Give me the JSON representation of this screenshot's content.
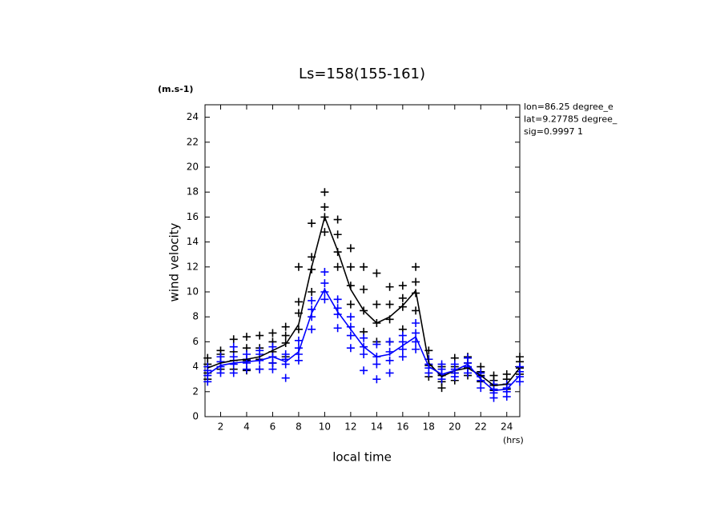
{
  "chart_data": {
    "type": "line",
    "title": "Ls=158(155-161)",
    "y_unit": "(m.s-1)",
    "ylabel": "wind velocity",
    "xlabel": "local time",
    "x_unit": "(hrs)",
    "annotations": [
      "lon=86.25 degree_e",
      "lat=9.27785 degree_",
      "sig=0.9997 1"
    ],
    "x": [
      1,
      2,
      3,
      4,
      5,
      6,
      7,
      8,
      9,
      10,
      11,
      12,
      13,
      14,
      15,
      16,
      17,
      18,
      19,
      20,
      21,
      22,
      23,
      24,
      25
    ],
    "series": [
      {
        "color": "#000000",
        "values": [
          3.9,
          4.3,
          4.5,
          4.6,
          4.8,
          5.3,
          5.8,
          7.4,
          12.0,
          16.0,
          13.3,
          10.2,
          8.5,
          7.5,
          8.0,
          8.9,
          10.1,
          4.3,
          3.2,
          3.7,
          3.9,
          3.3,
          2.5,
          2.6,
          3.9
        ]
      },
      {
        "color": "#0000ff",
        "values": [
          3.4,
          4.1,
          4.3,
          4.4,
          4.5,
          4.8,
          4.4,
          5.2,
          8.3,
          10.2,
          8.4,
          7.0,
          5.6,
          4.8,
          5.0,
          5.7,
          6.4,
          4.0,
          3.4,
          3.7,
          4.2,
          3.0,
          2.1,
          2.2,
          3.3
        ]
      }
    ],
    "scatter": [
      {
        "color": "#000000",
        "points": [
          [
            1,
            3.0
          ],
          [
            1,
            3.5
          ],
          [
            1,
            4.2
          ],
          [
            1,
            4.7
          ],
          [
            2,
            3.8
          ],
          [
            2,
            4.4
          ],
          [
            2,
            5.0
          ],
          [
            2,
            5.3
          ],
          [
            3,
            3.8
          ],
          [
            3,
            4.5
          ],
          [
            3,
            5.2
          ],
          [
            3,
            6.2
          ],
          [
            4,
            3.7
          ],
          [
            4,
            4.5
          ],
          [
            4,
            5.5
          ],
          [
            4,
            6.4
          ],
          [
            5,
            3.8
          ],
          [
            5,
            4.6
          ],
          [
            5,
            5.5
          ],
          [
            5,
            6.5
          ],
          [
            6,
            4.3
          ],
          [
            6,
            5.2
          ],
          [
            6,
            6.0
          ],
          [
            6,
            6.7
          ],
          [
            7,
            4.8
          ],
          [
            7,
            5.9
          ],
          [
            7,
            6.5
          ],
          [
            7,
            7.2
          ],
          [
            8,
            7.0
          ],
          [
            8,
            8.3
          ],
          [
            8,
            9.2
          ],
          [
            8,
            12.0
          ],
          [
            9,
            10.0
          ],
          [
            9,
            11.8
          ],
          [
            9,
            12.8
          ],
          [
            9,
            15.5
          ],
          [
            10,
            14.8
          ],
          [
            10,
            16.0
          ],
          [
            10,
            16.8
          ],
          [
            10,
            18.0
          ],
          [
            11,
            12.0
          ],
          [
            11,
            13.2
          ],
          [
            11,
            14.6
          ],
          [
            11,
            15.8
          ],
          [
            12,
            9.0
          ],
          [
            12,
            10.5
          ],
          [
            12,
            12.0
          ],
          [
            12,
            13.5
          ],
          [
            13,
            6.8
          ],
          [
            13,
            8.5
          ],
          [
            13,
            10.2
          ],
          [
            13,
            12.0
          ],
          [
            14,
            6.0
          ],
          [
            14,
            7.5
          ],
          [
            14,
            9.0
          ],
          [
            14,
            11.5
          ],
          [
            15,
            6.0
          ],
          [
            15,
            7.8
          ],
          [
            15,
            9.0
          ],
          [
            15,
            10.4
          ],
          [
            16,
            7.0
          ],
          [
            16,
            8.8
          ],
          [
            16,
            9.5
          ],
          [
            16,
            10.5
          ],
          [
            17,
            8.5
          ],
          [
            17,
            9.9
          ],
          [
            17,
            10.8
          ],
          [
            17,
            12.0
          ],
          [
            18,
            3.2
          ],
          [
            18,
            4.1
          ],
          [
            18,
            4.6
          ],
          [
            18,
            5.3
          ],
          [
            19,
            2.3
          ],
          [
            19,
            2.8
          ],
          [
            19,
            3.3
          ],
          [
            19,
            4.0
          ],
          [
            20,
            2.9
          ],
          [
            20,
            3.5
          ],
          [
            20,
            4.0
          ],
          [
            20,
            4.7
          ],
          [
            21,
            3.3
          ],
          [
            21,
            3.9
          ],
          [
            21,
            4.3
          ],
          [
            21,
            4.8
          ],
          [
            22,
            2.8
          ],
          [
            22,
            3.3
          ],
          [
            22,
            3.6
          ],
          [
            22,
            4.0
          ],
          [
            23,
            2.1
          ],
          [
            23,
            2.5
          ],
          [
            23,
            2.9
          ],
          [
            23,
            3.3
          ],
          [
            24,
            2.2
          ],
          [
            24,
            2.6
          ],
          [
            24,
            3.0
          ],
          [
            24,
            3.4
          ],
          [
            25,
            3.4
          ],
          [
            25,
            3.9
          ],
          [
            25,
            4.4
          ],
          [
            25,
            4.8
          ]
        ]
      },
      {
        "color": "#0000ff",
        "points": [
          [
            1,
            2.8
          ],
          [
            1,
            3.3
          ],
          [
            1,
            3.7
          ],
          [
            1,
            4.0
          ],
          [
            2,
            3.5
          ],
          [
            2,
            4.0
          ],
          [
            2,
            4.4
          ],
          [
            2,
            4.8
          ],
          [
            3,
            3.5
          ],
          [
            3,
            4.2
          ],
          [
            3,
            4.8
          ],
          [
            3,
            5.6
          ],
          [
            4,
            3.8
          ],
          [
            4,
            4.3
          ],
          [
            4,
            4.6
          ],
          [
            4,
            5.0
          ],
          [
            5,
            3.8
          ],
          [
            5,
            4.5
          ],
          [
            5,
            5.0
          ],
          [
            5,
            5.3
          ],
          [
            6,
            3.8
          ],
          [
            6,
            4.3
          ],
          [
            6,
            4.8
          ],
          [
            6,
            5.6
          ],
          [
            7,
            3.1
          ],
          [
            7,
            4.2
          ],
          [
            7,
            4.6
          ],
          [
            7,
            5.0
          ],
          [
            8,
            4.5
          ],
          [
            8,
            5.0
          ],
          [
            8,
            5.5
          ],
          [
            8,
            6.1
          ],
          [
            9,
            7.0
          ],
          [
            9,
            8.0
          ],
          [
            9,
            8.6
          ],
          [
            9,
            9.3
          ],
          [
            10,
            9.4
          ],
          [
            10,
            10.0
          ],
          [
            10,
            10.7
          ],
          [
            10,
            11.6
          ],
          [
            11,
            7.1
          ],
          [
            11,
            8.2
          ],
          [
            11,
            8.7
          ],
          [
            11,
            9.4
          ],
          [
            12,
            5.5
          ],
          [
            12,
            6.5
          ],
          [
            12,
            7.2
          ],
          [
            12,
            8.0
          ],
          [
            13,
            3.7
          ],
          [
            13,
            5.0
          ],
          [
            13,
            5.6
          ],
          [
            13,
            6.3
          ],
          [
            14,
            3.0
          ],
          [
            14,
            4.2
          ],
          [
            14,
            4.8
          ],
          [
            14,
            5.8
          ],
          [
            15,
            3.5
          ],
          [
            15,
            4.5
          ],
          [
            15,
            5.2
          ],
          [
            15,
            6.0
          ],
          [
            16,
            4.8
          ],
          [
            16,
            5.4
          ],
          [
            16,
            6.0
          ],
          [
            16,
            6.5
          ],
          [
            17,
            5.4
          ],
          [
            17,
            6.0
          ],
          [
            17,
            6.7
          ],
          [
            17,
            7.5
          ],
          [
            18,
            3.5
          ],
          [
            18,
            3.9
          ],
          [
            18,
            4.2
          ],
          [
            18,
            4.6
          ],
          [
            19,
            3.0
          ],
          [
            19,
            3.4
          ],
          [
            19,
            3.8
          ],
          [
            19,
            4.2
          ],
          [
            20,
            3.2
          ],
          [
            20,
            3.5
          ],
          [
            20,
            3.8
          ],
          [
            20,
            4.2
          ],
          [
            21,
            3.5
          ],
          [
            21,
            4.0
          ],
          [
            21,
            4.3
          ],
          [
            21,
            4.7
          ],
          [
            22,
            2.3
          ],
          [
            22,
            2.9
          ],
          [
            22,
            3.2
          ],
          [
            22,
            3.5
          ],
          [
            23,
            1.5
          ],
          [
            23,
            1.9
          ],
          [
            23,
            2.2
          ],
          [
            23,
            2.6
          ],
          [
            24,
            1.6
          ],
          [
            24,
            2.0
          ],
          [
            24,
            2.3
          ],
          [
            24,
            2.6
          ],
          [
            25,
            2.8
          ],
          [
            25,
            3.2
          ],
          [
            25,
            3.6
          ],
          [
            25,
            4.0
          ]
        ]
      }
    ],
    "xlim": [
      0.8,
      25
    ],
    "xticks": [
      2,
      4,
      6,
      8,
      10,
      12,
      14,
      16,
      18,
      20,
      22,
      24
    ],
    "ylim": [
      0,
      25
    ],
    "yticks": [
      0,
      2,
      4,
      6,
      8,
      10,
      12,
      14,
      16,
      18,
      20,
      22,
      24
    ]
  }
}
